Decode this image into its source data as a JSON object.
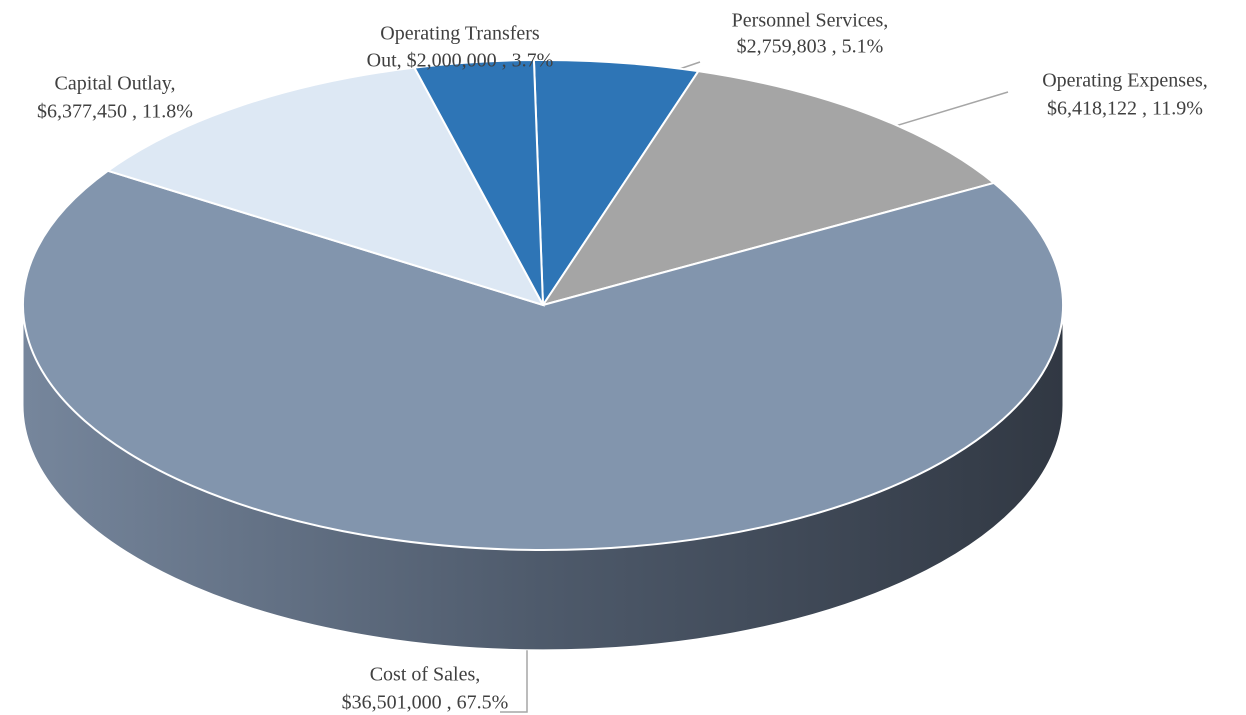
{
  "chart_data": {
    "type": "pie3d",
    "categories": [
      "Personnel Services,",
      "Operating Expenses,",
      "Cost of Sales,",
      "Capital Outlay,",
      "Operating Transfers"
    ],
    "values": [
      2759803,
      6418122,
      36501000,
      6377450,
      2000000
    ],
    "value_labels": [
      "$2,759,803 , 5.1%",
      "$6,418,122 , 11.9%",
      "$36,501,000 , 67.5%",
      "$6,377,450 , 11.8%",
      "Out, $2,000,000 , 3.7%"
    ],
    "colors": [
      "#2e75b6",
      "#a5a5a5",
      "#8295ad",
      "#dde8f4",
      "#2e75b6"
    ]
  }
}
